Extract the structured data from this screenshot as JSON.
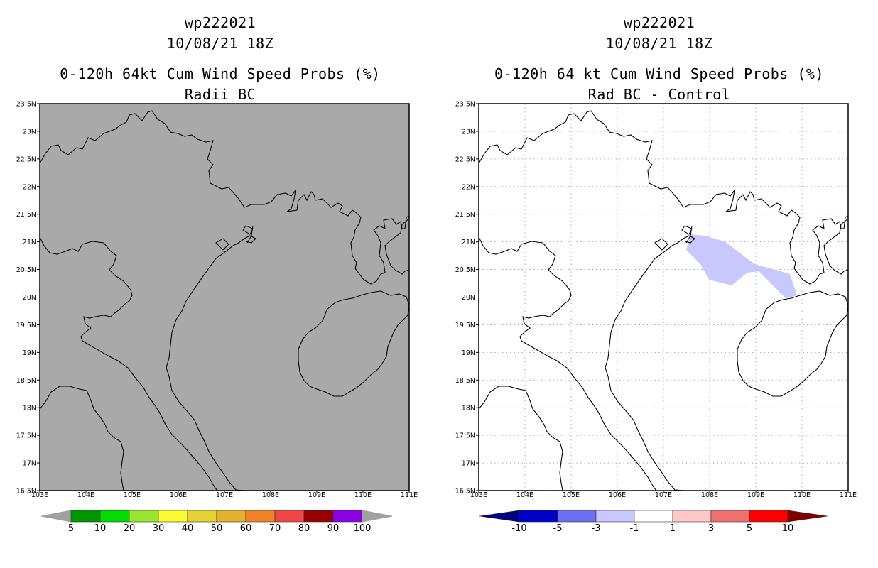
{
  "left_panel": {
    "title_line1": "wp222021",
    "title_line2": "10/08/21 18Z",
    "title_line3": "0-120h 64kt Cum Wind Speed Probs (%)",
    "title_line4": "Radii BC",
    "background_color": "#a9a9a9",
    "colorbar": {
      "labels": [
        "5",
        "10",
        "20",
        "30",
        "40",
        "50",
        "60",
        "70",
        "80",
        "90",
        "100"
      ],
      "colors": [
        "#009600",
        "#00dc00",
        "#96e632",
        "#fafa32",
        "#e6d232",
        "#e6af2d",
        "#f08228",
        "#f04646",
        "#960000",
        "#8c00e6"
      ],
      "end_color": "#a0a0a0"
    }
  },
  "right_panel": {
    "title_line1": "wp222021",
    "title_line2": "10/08/21 18Z",
    "title_line3": "0-120h 64 kt Cum Wind Speed Probs (%)",
    "title_line4": "Rad BC - Control",
    "shading_color": "#c8c8ff",
    "colorbar": {
      "labels": [
        "-10",
        "-5",
        "-3",
        "-1",
        "1",
        "3",
        "5",
        "10"
      ],
      "colors": [
        "#0000c8",
        "#6e6ef0",
        "#c8c8ff",
        "#ffffff",
        "#ffc8c8",
        "#f07070",
        "#ff0000"
      ],
      "low_end_color": "#000080",
      "high_end_color": "#800000"
    }
  },
  "map": {
    "lat_labels": [
      "23.5N",
      "23N",
      "22.5N",
      "22N",
      "21.5N",
      "21N",
      "20.5N",
      "20N",
      "19.5N",
      "19N",
      "18.5N",
      "18N",
      "17.5N",
      "17N",
      "16.5N"
    ],
    "lon_labels": [
      "103E",
      "104E",
      "105E",
      "106E",
      "107E",
      "108E",
      "109E",
      "110E",
      "111E"
    ]
  }
}
